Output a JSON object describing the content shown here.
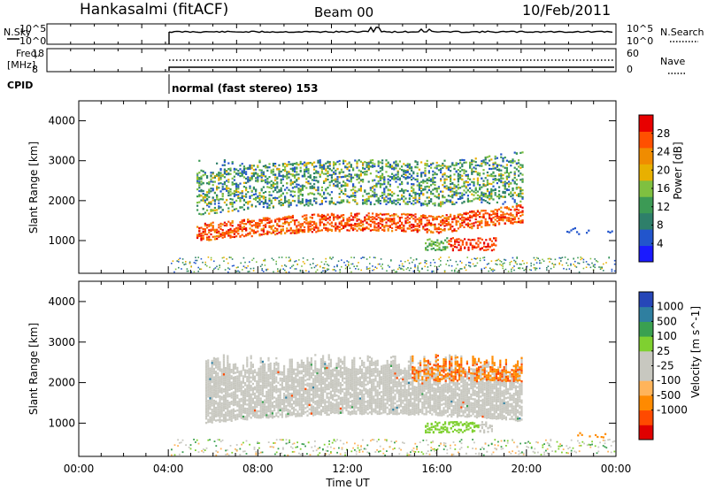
{
  "header": {
    "station": "Hankasalmi (fitACF)",
    "beam": "Beam 00",
    "date": "10/Feb/2011"
  },
  "sky_panel": {
    "left_label": "N.Sky",
    "left_ticks": [
      "10^5",
      "10^0"
    ],
    "right_ticks": [
      "10^5",
      "10^0"
    ],
    "right_label": "N.Search"
  },
  "freq_panel": {
    "left_label_1": "Freq.",
    "left_label_2": "[MHz]",
    "left_ticks": [
      "18",
      "8"
    ],
    "right_ticks": [
      "60",
      "0"
    ],
    "right_label": "Nave"
  },
  "cpid": {
    "label": "CPID",
    "mode": "normal (fast stereo) 153"
  },
  "colors": {
    "power": [
      "#1a1aff",
      "#2255cc",
      "#2e7f6a",
      "#3c9a55",
      "#7fc040",
      "#e8b000",
      "#f08c00",
      "#ff5000",
      "#e80000"
    ],
    "velocity": [
      "#e00000",
      "#ff4a00",
      "#ff8a00",
      "#ffb45a",
      "#c8c8c0",
      "#c8c8c0",
      "#7fd030",
      "#3aa050",
      "#2f7fa0",
      "#2646b8"
    ]
  },
  "chart_data": [
    {
      "type": "heatmap",
      "panel": "power",
      "ylabel": "Slant Range [km]",
      "y_ticks": [
        "1000",
        "2000",
        "3000",
        "4000"
      ],
      "ylim": [
        180,
        4500
      ],
      "xlim_hours": [
        0,
        24
      ],
      "colorbar_label": "Power [dB]",
      "colorbar_ticks": [
        "4",
        "8",
        "12",
        "16",
        "20",
        "24",
        "28"
      ],
      "colorbar_range": [
        0,
        32
      ]
    },
    {
      "type": "heatmap",
      "panel": "velocity",
      "ylabel": "Slant Range [km]",
      "y_ticks": [
        "1000",
        "2000",
        "3000",
        "4000"
      ],
      "ylim": [
        180,
        4500
      ],
      "xlim_hours": [
        0,
        24
      ],
      "xlabel": "Time UT",
      "x_ticks": [
        "00:00",
        "04:00",
        "08:00",
        "12:00",
        "16:00",
        "20:00",
        "00:00"
      ],
      "colorbar_label": "Velocity [m s^-1]",
      "colorbar_ticks": [
        "1000",
        "500",
        "100",
        "25",
        "-25",
        "-100",
        "-500",
        "-1000"
      ]
    }
  ]
}
